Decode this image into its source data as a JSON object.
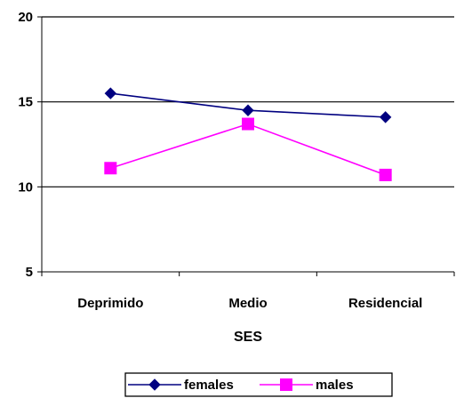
{
  "chart_data": {
    "type": "line",
    "categories": [
      "Deprimido",
      "Medio",
      "Residencial"
    ],
    "series": [
      {
        "name": "females",
        "values": [
          15.5,
          14.5,
          14.1
        ],
        "color": "#000080",
        "marker": "diamond"
      },
      {
        "name": "males",
        "values": [
          11.1,
          13.7,
          10.7
        ],
        "color": "#ff00ff",
        "marker": "square"
      }
    ],
    "xlabel": "SES",
    "ylabel": "",
    "ylim": [
      5,
      20
    ],
    "yticks": [
      5,
      10,
      15,
      20
    ],
    "grid": "horizontal",
    "legend_position": "bottom"
  }
}
